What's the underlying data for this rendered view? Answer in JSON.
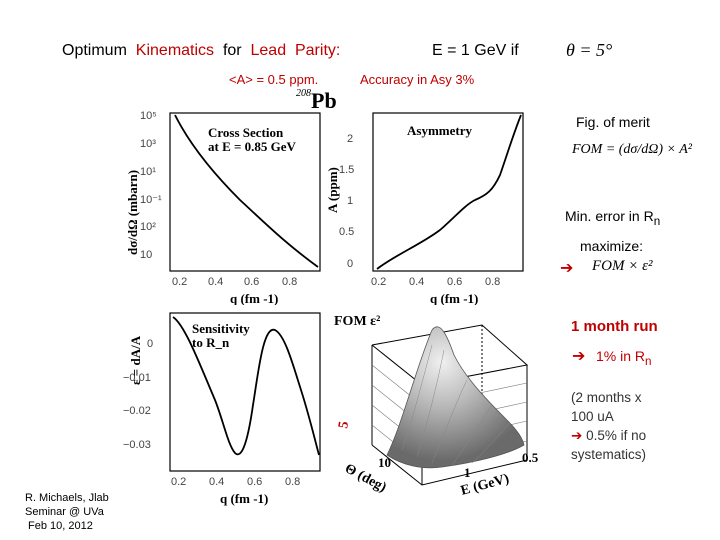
{
  "header": {
    "title_prefix": "Optimum",
    "title_word2": "Kinematics",
    "title_for": "for",
    "title_word4": "Lead",
    "title_word5": "Parity:",
    "energy_text": "E =  1 GeV  if",
    "theta_formula": "θ = 5°",
    "asym_text": "<A> = 0.5 ppm.",
    "accuracy_text": "Accuracy in Asy 3%",
    "nucleus_mass": "208",
    "nucleus": "Pb"
  },
  "right_panel": {
    "fig_of_merit": "Fig. of merit",
    "fom_formula": "FOM = (dσ/dΩ) × A²",
    "min_error": "Min. error in R",
    "min_error_sub": "n",
    "maximize": "maximize:",
    "maximize_formula": "FOM × ε²",
    "month_run": "1 month run",
    "one_percent": "1%  in R",
    "one_percent_sub": "n",
    "two_months_line1": "(2  months  x",
    "two_months_line2": "100 uA",
    "two_months_line3": "0.5%  if  no",
    "two_months_line4": "systematics)"
  },
  "footer": {
    "line1": "R. Michaels, Jlab",
    "line2": "Seminar @ UVa",
    "line3": "Feb 10, 2012"
  },
  "plots": {
    "cross_section": {
      "title_line1": "Cross Section",
      "title_line2": "at E = 0.85 GeV",
      "ylabel": "dσ/dΩ  (mbarn)",
      "xlabel": "q  (fm -1)",
      "y_ticks": [
        "10⁵",
        "10³",
        "10¹",
        "10⁻¹",
        "10²",
        "10"
      ],
      "x_ticks": [
        "0.2",
        "0.4",
        "0.6",
        "0.8"
      ]
    },
    "asymmetry": {
      "title": "Asymmetry",
      "ylabel": "A  (ppm)",
      "xlabel": "q  (fm -1)",
      "y_ticks": [
        "2",
        "1.5",
        "1",
        "0.5",
        "0"
      ],
      "x_ticks": [
        "0.2",
        "0.4",
        "0.6",
        "0.8"
      ]
    },
    "sensitivity": {
      "title_line1": "Sensitivity",
      "title_line2": "to R_n",
      "ylabel": "ε = dA/A",
      "xlabel": "q  (fm -1)",
      "y_ticks": [
        "0",
        "−0.01",
        "−0.02",
        "−0.03"
      ],
      "x_ticks": [
        "0.2",
        "0.4",
        "0.6",
        "0.8"
      ]
    },
    "fom3d": {
      "title": "FOM ε²",
      "theta_label": "Θ (deg)",
      "theta_ticks": [
        "5",
        "10"
      ],
      "energy_label": "E (GeV)",
      "energy_ticks": [
        "1",
        "0.5"
      ]
    }
  }
}
